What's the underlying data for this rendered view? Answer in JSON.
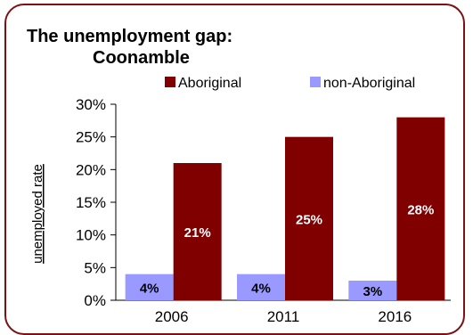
{
  "chart_data": {
    "type": "bar",
    "title_line1": "The unemployment gap:",
    "title_line2": "Coonamble",
    "ylabel": "unemployed rate",
    "xlabel": "",
    "categories": [
      "2006",
      "2011",
      "2016"
    ],
    "series": [
      {
        "name": "Aboriginal",
        "color": "#800000",
        "values": [
          21,
          25,
          28
        ],
        "labels": [
          "21%",
          "25%",
          "28%"
        ]
      },
      {
        "name": "non-Aboriginal",
        "color": "#9999ff",
        "values": [
          4,
          4,
          3
        ],
        "labels": [
          "4%",
          "4%",
          "3%"
        ]
      }
    ],
    "legend_order": [
      1,
      0
    ],
    "ylim": [
      0,
      30
    ],
    "yticks": [
      0,
      5,
      10,
      15,
      20,
      25,
      30
    ],
    "ytick_labels": [
      "0%",
      "5%",
      "10%",
      "15%",
      "20%",
      "25%",
      "30%"
    ],
    "grid": false,
    "legend_position": "top"
  }
}
